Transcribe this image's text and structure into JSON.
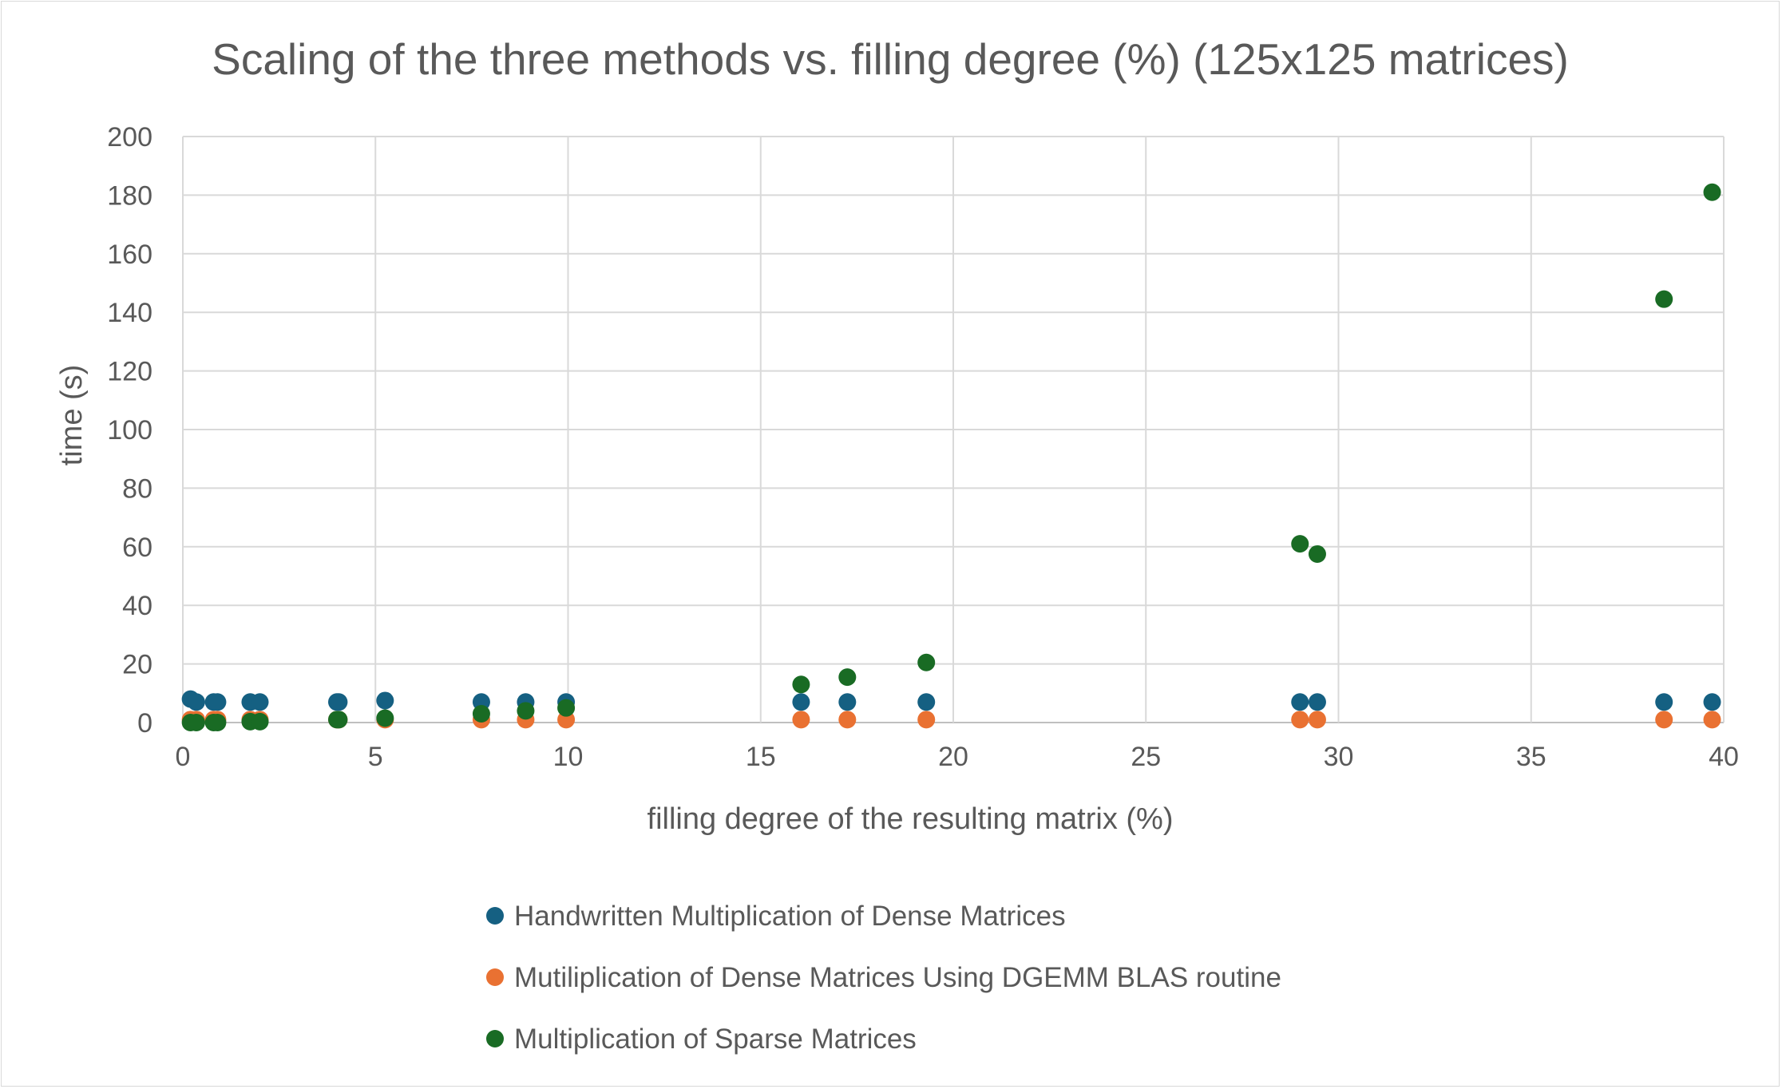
{
  "chart_data": {
    "type": "scatter",
    "title": "Scaling of the three methods vs. filling degree (%) (125x125 matrices)",
    "xlabel": "filling degree of the resulting matrix (%)",
    "ylabel": "time (s)",
    "xlim": [
      0,
      40
    ],
    "ylim": [
      0,
      200
    ],
    "xticks": [
      "0",
      "5",
      "10",
      "15",
      "20",
      "25",
      "30",
      "35",
      "40"
    ],
    "yticks": [
      "0",
      "20",
      "40",
      "60",
      "80",
      "100",
      "120",
      "140",
      "160",
      "180",
      "200"
    ],
    "grid": true,
    "legend_position": "bottom",
    "series": [
      {
        "name": "Handwritten Multiplication of Dense Matrices",
        "color": "#156082",
        "points": [
          {
            "x": 0.2,
            "y": 8
          },
          {
            "x": 0.35,
            "y": 7
          },
          {
            "x": 0.8,
            "y": 7
          },
          {
            "x": 0.9,
            "y": 7
          },
          {
            "x": 1.75,
            "y": 7
          },
          {
            "x": 2.0,
            "y": 7
          },
          {
            "x": 4.0,
            "y": 7
          },
          {
            "x": 4.05,
            "y": 7
          },
          {
            "x": 5.25,
            "y": 7.5
          },
          {
            "x": 7.75,
            "y": 7
          },
          {
            "x": 8.9,
            "y": 7
          },
          {
            "x": 9.95,
            "y": 7
          },
          {
            "x": 16.05,
            "y": 7
          },
          {
            "x": 17.25,
            "y": 7
          },
          {
            "x": 19.3,
            "y": 7
          },
          {
            "x": 29.0,
            "y": 7
          },
          {
            "x": 29.45,
            "y": 7
          },
          {
            "x": 38.45,
            "y": 7
          },
          {
            "x": 39.7,
            "y": 7
          }
        ]
      },
      {
        "name": "Mutiliplication of Dense Matrices Using DGEMM BLAS routine",
        "color": "#E97132",
        "points": [
          {
            "x": 0.2,
            "y": 1
          },
          {
            "x": 0.35,
            "y": 1
          },
          {
            "x": 0.8,
            "y": 1
          },
          {
            "x": 0.9,
            "y": 1
          },
          {
            "x": 1.75,
            "y": 1
          },
          {
            "x": 2.0,
            "y": 1
          },
          {
            "x": 4.0,
            "y": 1
          },
          {
            "x": 4.05,
            "y": 1
          },
          {
            "x": 5.25,
            "y": 1
          },
          {
            "x": 7.75,
            "y": 1
          },
          {
            "x": 8.9,
            "y": 1
          },
          {
            "x": 9.95,
            "y": 1
          },
          {
            "x": 16.05,
            "y": 1
          },
          {
            "x": 17.25,
            "y": 1
          },
          {
            "x": 19.3,
            "y": 1
          },
          {
            "x": 29.0,
            "y": 1
          },
          {
            "x": 29.45,
            "y": 1
          },
          {
            "x": 38.45,
            "y": 1
          },
          {
            "x": 39.7,
            "y": 1
          }
        ]
      },
      {
        "name": "Multiplication of Sparse Matrices",
        "color": "#196B24",
        "points": [
          {
            "x": 0.2,
            "y": 0
          },
          {
            "x": 0.35,
            "y": 0
          },
          {
            "x": 0.8,
            "y": 0
          },
          {
            "x": 0.9,
            "y": 0
          },
          {
            "x": 1.75,
            "y": 0.3
          },
          {
            "x": 2.0,
            "y": 0.3
          },
          {
            "x": 4.0,
            "y": 1
          },
          {
            "x": 4.05,
            "y": 1
          },
          {
            "x": 5.25,
            "y": 1.5
          },
          {
            "x": 7.75,
            "y": 3
          },
          {
            "x": 8.9,
            "y": 4
          },
          {
            "x": 9.95,
            "y": 5
          },
          {
            "x": 16.05,
            "y": 13
          },
          {
            "x": 17.25,
            "y": 15.5
          },
          {
            "x": 19.3,
            "y": 20.5
          },
          {
            "x": 29.0,
            "y": 61
          },
          {
            "x": 29.45,
            "y": 57.5
          },
          {
            "x": 38.45,
            "y": 144.5
          },
          {
            "x": 39.7,
            "y": 181
          }
        ]
      }
    ]
  }
}
